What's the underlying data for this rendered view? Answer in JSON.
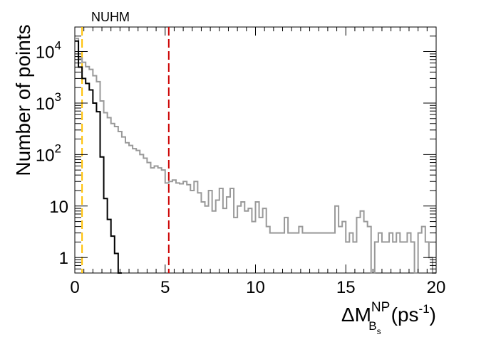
{
  "chart_data": {
    "type": "histogram",
    "annotation": "NUHM",
    "ylabel": "Number of points",
    "xlabel": {
      "main": "ΔM",
      "superscript": "NP",
      "subscript": "B",
      "sub_subscript": "s",
      "unit_open": "(ps",
      "unit_exp": "-1",
      "unit_close": ")"
    },
    "xlim": [
      0,
      20
    ],
    "ylim": [
      0.5,
      30000
    ],
    "y_scale": "log",
    "bin_width": 0.2,
    "x_ticks": [
      {
        "value": 0,
        "label": "0"
      },
      {
        "value": 5,
        "label": "5"
      },
      {
        "value": 10,
        "label": "10"
      },
      {
        "value": 15,
        "label": "15"
      },
      {
        "value": 20,
        "label": "20"
      }
    ],
    "y_ticks": [
      {
        "value": 1,
        "label": "1",
        "sup": ""
      },
      {
        "value": 10,
        "label": "10",
        "sup": ""
      },
      {
        "value": 100,
        "label": "10",
        "sup": "2"
      },
      {
        "value": 1000,
        "label": "10",
        "sup": "3"
      },
      {
        "value": 10000,
        "label": "10",
        "sup": "4"
      }
    ],
    "reference_lines": [
      {
        "x": 0.4,
        "color": "#FFC000",
        "style": "dashed"
      },
      {
        "x": 5.2,
        "color": "#CC0000",
        "style": "dashed"
      }
    ],
    "series": [
      {
        "color": "#000000",
        "values": [
          16000,
          5000,
          3000,
          2400,
          1800,
          1000,
          680,
          90,
          14,
          5.5,
          2.6,
          1.2,
          0
        ]
      },
      {
        "color": "#999999",
        "values": [
          18000,
          7500,
          6200,
          5100,
          4500,
          3400,
          2600,
          1100,
          650,
          520,
          400,
          350,
          280,
          220,
          170,
          150,
          130,
          120,
          100,
          85,
          70,
          55,
          60,
          55,
          50,
          28,
          30,
          32,
          28,
          27,
          30,
          26,
          20,
          30,
          18,
          12,
          10,
          20,
          8,
          13,
          22,
          9,
          15,
          22,
          6,
          10,
          12,
          8,
          9,
          5,
          12,
          6,
          9,
          4,
          3,
          3,
          3,
          3,
          6,
          3,
          3,
          3,
          4,
          3,
          3,
          3,
          3,
          3,
          3,
          3,
          3,
          3,
          10,
          4,
          5,
          2,
          3,
          2,
          6,
          8,
          5,
          4,
          0,
          2,
          3,
          2,
          2,
          3,
          2,
          3,
          2,
          2,
          3,
          2,
          0,
          3,
          4,
          2,
          1,
          0
        ]
      }
    ]
  }
}
